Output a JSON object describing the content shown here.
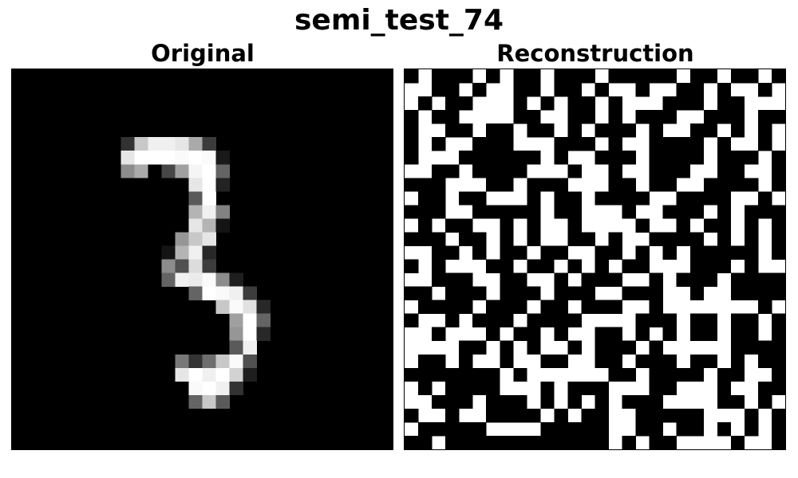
{
  "figure": {
    "title": "semi_test_74"
  },
  "chart_data": [
    {
      "type": "heatmap",
      "title": "Original",
      "rows": 28,
      "cols": 28,
      "colormap": "gray",
      "vmin": 0,
      "vmax": 255,
      "background": 0,
      "pixels": [
        [
          5,
          8,
          50
        ],
        [
          5,
          9,
          200
        ],
        [
          5,
          10,
          240
        ],
        [
          5,
          11,
          240
        ],
        [
          5,
          12,
          230
        ],
        [
          5,
          13,
          170
        ],
        [
          5,
          14,
          60
        ],
        [
          6,
          8,
          230
        ],
        [
          6,
          9,
          255
        ],
        [
          6,
          10,
          255
        ],
        [
          6,
          11,
          255
        ],
        [
          6,
          12,
          250
        ],
        [
          6,
          13,
          255
        ],
        [
          6,
          14,
          250
        ],
        [
          6,
          15,
          25
        ],
        [
          7,
          8,
          140
        ],
        [
          7,
          9,
          170
        ],
        [
          7,
          11,
          70
        ],
        [
          7,
          12,
          160
        ],
        [
          7,
          13,
          245
        ],
        [
          7,
          14,
          255
        ],
        [
          7,
          15,
          100
        ],
        [
          8,
          13,
          230
        ],
        [
          8,
          14,
          255
        ],
        [
          8,
          15,
          35
        ],
        [
          9,
          13,
          90
        ],
        [
          9,
          14,
          255
        ],
        [
          10,
          13,
          180
        ],
        [
          10,
          14,
          240
        ],
        [
          10,
          15,
          130
        ],
        [
          11,
          13,
          230
        ],
        [
          11,
          14,
          180
        ],
        [
          11,
          15,
          20
        ],
        [
          12,
          12,
          150
        ],
        [
          12,
          13,
          200
        ],
        [
          12,
          14,
          230
        ],
        [
          13,
          11,
          20
        ],
        [
          13,
          12,
          180
        ],
        [
          13,
          13,
          240
        ],
        [
          13,
          14,
          40
        ],
        [
          14,
          11,
          140
        ],
        [
          14,
          12,
          80
        ],
        [
          14,
          13,
          220
        ],
        [
          14,
          14,
          60
        ],
        [
          15,
          11,
          100
        ],
        [
          15,
          12,
          240
        ],
        [
          15,
          13,
          235
        ],
        [
          15,
          14,
          250
        ],
        [
          15,
          15,
          140
        ],
        [
          15,
          16,
          30
        ],
        [
          16,
          13,
          100
        ],
        [
          16,
          14,
          255
        ],
        [
          16,
          15,
          250
        ],
        [
          16,
          16,
          240
        ],
        [
          16,
          17,
          60
        ],
        [
          17,
          15,
          200
        ],
        [
          17,
          16,
          250
        ],
        [
          17,
          17,
          225
        ],
        [
          17,
          18,
          40
        ],
        [
          18,
          16,
          160
        ],
        [
          18,
          17,
          255
        ],
        [
          18,
          18,
          100
        ],
        [
          19,
          16,
          150
        ],
        [
          19,
          17,
          255
        ],
        [
          19,
          18,
          40
        ],
        [
          20,
          16,
          90
        ],
        [
          20,
          17,
          240
        ],
        [
          21,
          12,
          120
        ],
        [
          21,
          13,
          50
        ],
        [
          21,
          14,
          110
        ],
        [
          21,
          15,
          200
        ],
        [
          21,
          16,
          250
        ],
        [
          21,
          17,
          80
        ],
        [
          22,
          12,
          230
        ],
        [
          22,
          13,
          255
        ],
        [
          22,
          14,
          240
        ],
        [
          22,
          15,
          255
        ],
        [
          22,
          16,
          210
        ],
        [
          22,
          17,
          30
        ],
        [
          23,
          13,
          250
        ],
        [
          23,
          14,
          255
        ],
        [
          23,
          15,
          240
        ],
        [
          23,
          16,
          50
        ],
        [
          24,
          13,
          100
        ],
        [
          24,
          14,
          200
        ],
        [
          24,
          15,
          90
        ]
      ]
    },
    {
      "type": "heatmap",
      "title": "Reconstruction",
      "rows": 28,
      "cols": 28,
      "colormap": "binary",
      "values": [
        0,
        1
      ],
      "rows_data": [
        "1011101011011101111101101101",
        "0011010011011010010011010010",
        "0101100010101101000111011000",
        "1011000011001101011100111011",
        "1001101101101011101001101010",
        "1010011100011101001111010010",
        "1000111111010011101111011101",
        "0011011110001001001110011001",
        "1110001101110001101100111101",
        "0110110001011011110011110010",
        "1110011111011000100111010111",
        "0101100101001000010010110101",
        "1110110101001101001111010101",
        "0011010110110011010101111101",
        "1010001101101010110001110100",
        "0011100110010111001011101111",
        "1101110111011100111001001111",
        "0111101110110111001000000010",
        "1001011101111000011101101101",
        "0010001011010011010101101101",
        "0000110101001011101000001111",
        "0110100100110011011101101011",
        "1111111010000001101111011001",
        "0101111000101110001100010011",
        "0011101110101010111000011010",
        "1001001111010110011111000101",
        "0111110000111110011011010101",
        "1101111111111110101100001001"
      ]
    }
  ]
}
